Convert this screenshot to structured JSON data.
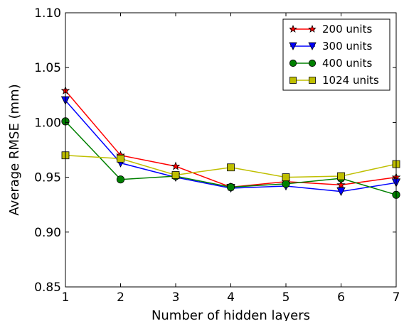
{
  "chart_data": {
    "type": "line",
    "title": "",
    "xlabel": "Number of hidden layers",
    "ylabel": "Average RMSE (mm)",
    "x": [
      1,
      2,
      3,
      4,
      5,
      6,
      7
    ],
    "xlim": [
      1,
      7
    ],
    "ylim": [
      0.85,
      1.1
    ],
    "xticks": [
      "1",
      "2",
      "3",
      "4",
      "5",
      "6",
      "7"
    ],
    "yticks": [
      "0.85",
      "0.90",
      "0.95",
      "1.00",
      "1.05",
      "1.10"
    ],
    "grid": false,
    "legend_position": "top-right",
    "series": [
      {
        "name": "200 units",
        "color": "#ff0000",
        "marker": "star",
        "values": [
          1.029,
          0.97,
          0.96,
          0.941,
          0.946,
          0.943,
          0.95
        ]
      },
      {
        "name": "300 units",
        "color": "#0000ff",
        "marker": "triangle-down",
        "values": [
          1.02,
          0.963,
          0.95,
          0.94,
          0.942,
          0.937,
          0.945
        ]
      },
      {
        "name": "400 units",
        "color": "#008000",
        "marker": "circle",
        "values": [
          1.001,
          0.948,
          0.951,
          0.941,
          0.944,
          0.949,
          0.934
        ]
      },
      {
        "name": "1024 units",
        "color": "#bfbf00",
        "marker": "square",
        "values": [
          0.97,
          0.967,
          0.952,
          0.959,
          0.95,
          0.951,
          0.962
        ]
      }
    ]
  }
}
